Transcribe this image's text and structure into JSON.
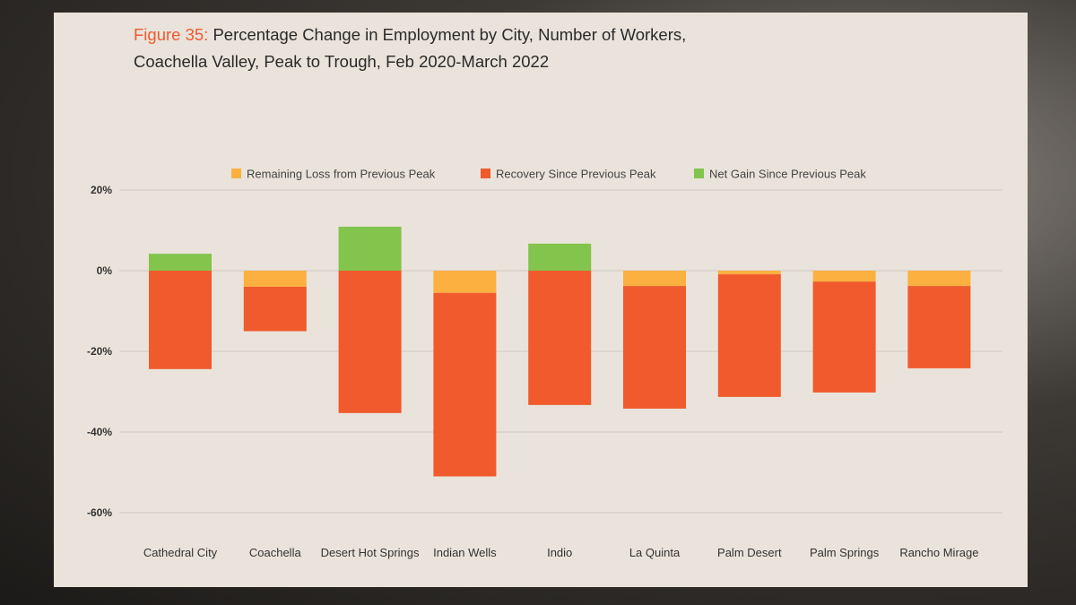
{
  "chart_data": {
    "type": "bar",
    "stacked": true,
    "title_prefix": "Figure 35:",
    "title_line1": "Percentage Change in Employment by City, Number of Workers,",
    "title_line2": "Coachella Valley, Peak to Trough, Feb 2020-March 2022",
    "xlabel": "",
    "ylabel": "",
    "ylim": [
      -60,
      20
    ],
    "yticks": [
      20,
      0,
      -20,
      -40,
      -60
    ],
    "ytick_labels": [
      "20%",
      "0%",
      "-20%",
      "-40%",
      "-60%"
    ],
    "grid": true,
    "legend_position": "top",
    "categories": [
      "Cathedral City",
      "Coachella",
      "Desert Hot Springs",
      "Indian Wells",
      "Indio",
      "La Quinta",
      "Palm Desert",
      "Palm Springs",
      "Rancho Mirage"
    ],
    "series": [
      {
        "name": "Remaining Loss from Previous Peak",
        "color": "#fbb040",
        "values": [
          0,
          -4.0,
          0,
          -5.5,
          0,
          -3.8,
          -0.9,
          -2.7,
          -3.8
        ]
      },
      {
        "name": "Recovery Since Previous Peak",
        "color": "#f05a2c",
        "values": [
          -24.4,
          -11.0,
          -35.3,
          -45.5,
          -33.3,
          -30.4,
          -30.4,
          -27.5,
          -20.4
        ]
      },
      {
        "name": "Net Gain Since Previous Peak",
        "color": "#82c44c",
        "values": [
          4.2,
          0,
          10.9,
          0,
          6.7,
          0,
          0,
          0,
          0
        ]
      }
    ]
  }
}
